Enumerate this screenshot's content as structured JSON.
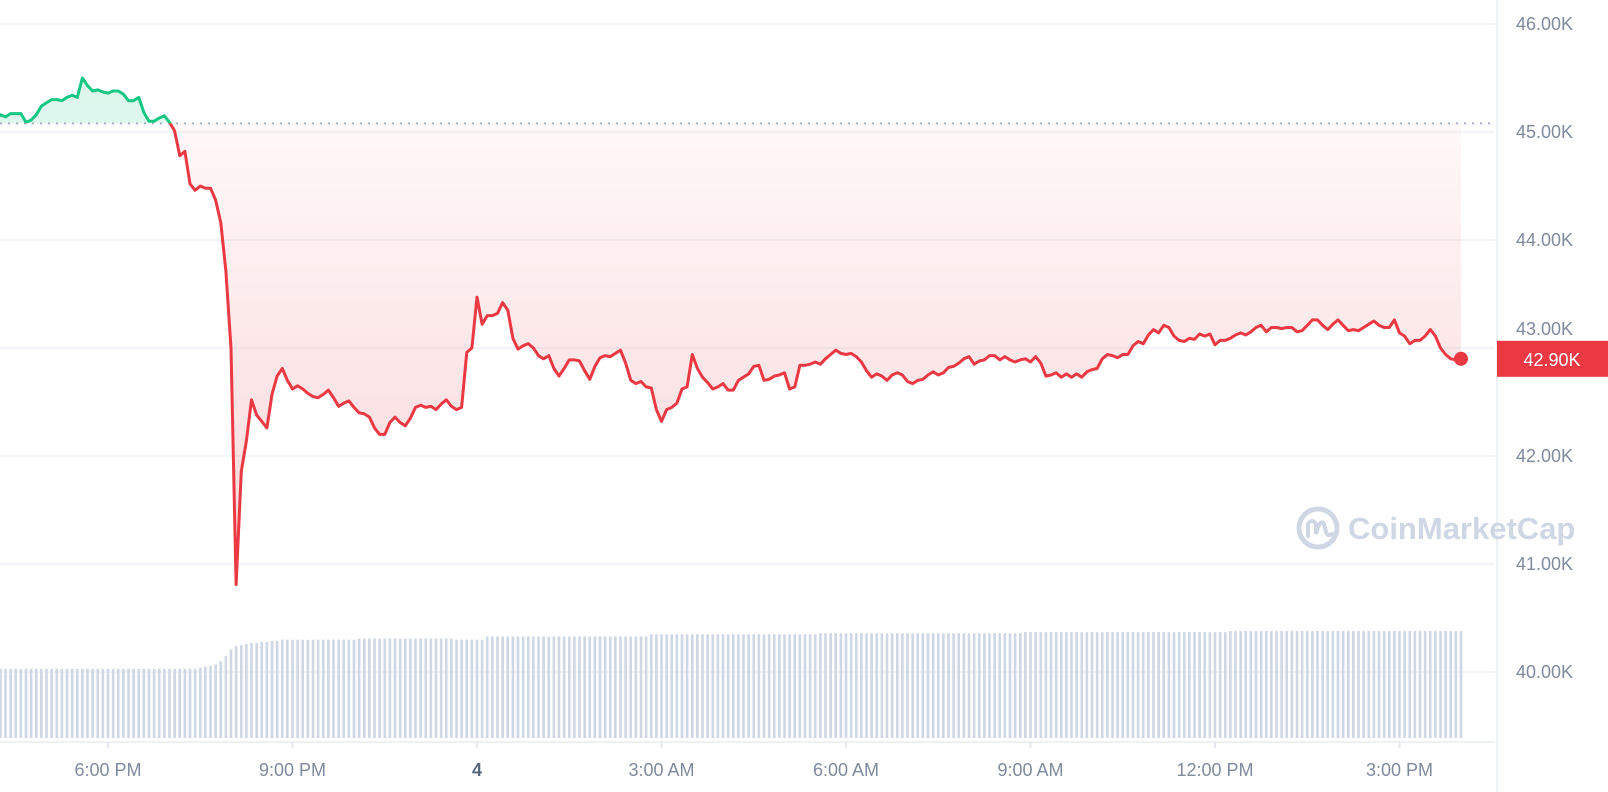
{
  "chart_data": {
    "type": "area",
    "title": "",
    "xlabel": "",
    "ylabel": "",
    "start_time": "4:10 PM",
    "interval_minutes": 5,
    "y_unit": "K",
    "ylim": [
      39.5,
      46.2
    ],
    "grid": true,
    "reference_price": 45.08,
    "current_price_label": "42.90K",
    "colors": {
      "up": "#16c784",
      "down": "#ea3943",
      "volume": "#cfd6e4",
      "grid": "#eff2f5",
      "text": "#808a9d"
    },
    "y_ticks": [
      {
        "value": 46,
        "label": "46.00K"
      },
      {
        "value": 45,
        "label": "45.00K"
      },
      {
        "value": 44,
        "label": "44.00K"
      },
      {
        "value": 43,
        "label": "43.00K"
      },
      {
        "value": 42,
        "label": "42.00K"
      },
      {
        "value": 41,
        "label": "41.00K"
      },
      {
        "value": 40,
        "label": "40.00K"
      }
    ],
    "x_ticks": [
      {
        "hour": -6,
        "label": "6:00 PM",
        "bold": false
      },
      {
        "hour": -3,
        "label": "9:00 PM",
        "bold": false
      },
      {
        "hour": 0,
        "label": "4",
        "bold": true
      },
      {
        "hour": 3,
        "label": "3:00 AM",
        "bold": false
      },
      {
        "hour": 6,
        "label": "6:00 AM",
        "bold": false
      },
      {
        "hour": 9,
        "label": "9:00 AM",
        "bold": false
      },
      {
        "hour": 12,
        "label": "12:00 PM",
        "bold": false
      },
      {
        "hour": 15,
        "label": "3:00 PM",
        "bold": false
      }
    ],
    "price": [
      45.11,
      45.16,
      45.14,
      45.17,
      45.17,
      45.17,
      45.09,
      45.11,
      45.16,
      45.24,
      45.27,
      45.3,
      45.3,
      45.29,
      45.32,
      45.34,
      45.32,
      45.5,
      45.43,
      45.38,
      45.39,
      45.37,
      45.36,
      45.38,
      45.38,
      45.35,
      45.29,
      45.29,
      45.32,
      45.18,
      45.1,
      45.1,
      45.13,
      45.15,
      45.09,
      45.01,
      44.78,
      44.82,
      44.52,
      44.46,
      44.5,
      44.48,
      44.48,
      44.37,
      44.16,
      43.71,
      43.0,
      40.81,
      41.86,
      42.14,
      42.52,
      42.38,
      42.32,
      42.26,
      42.57,
      42.74,
      42.81,
      42.7,
      42.62,
      42.65,
      42.62,
      42.58,
      42.55,
      42.54,
      42.57,
      42.61,
      42.54,
      42.46,
      42.49,
      42.51,
      42.45,
      42.4,
      42.39,
      42.36,
      42.26,
      42.2,
      42.2,
      42.31,
      42.36,
      42.31,
      42.28,
      42.35,
      42.45,
      42.47,
      42.45,
      42.46,
      42.43,
      42.48,
      42.52,
      42.46,
      42.43,
      42.45,
      42.96,
      43.0,
      43.47,
      43.22,
      43.3,
      43.3,
      43.32,
      43.42,
      43.35,
      43.09,
      42.99,
      43.02,
      43.04,
      43.0,
      42.93,
      42.9,
      42.93,
      42.81,
      42.74,
      42.81,
      42.89,
      42.89,
      42.88,
      42.79,
      42.71,
      42.83,
      42.91,
      42.93,
      42.92,
      42.95,
      42.98,
      42.86,
      42.7,
      42.67,
      42.69,
      42.64,
      42.63,
      42.43,
      42.32,
      42.43,
      42.45,
      42.49,
      42.62,
      42.64,
      42.94,
      42.81,
      42.73,
      42.68,
      42.62,
      42.64,
      42.67,
      42.61,
      42.61,
      42.7,
      42.73,
      42.76,
      42.83,
      42.84,
      42.7,
      42.71,
      42.74,
      42.75,
      42.77,
      42.62,
      42.64,
      42.84,
      42.84,
      42.85,
      42.87,
      42.85,
      42.9,
      42.94,
      42.98,
      42.95,
      42.94,
      42.95,
      42.92,
      42.87,
      42.79,
      42.73,
      42.76,
      42.74,
      42.7,
      42.75,
      42.77,
      42.75,
      42.69,
      42.67,
      42.7,
      42.71,
      42.75,
      42.78,
      42.75,
      42.77,
      42.82,
      42.83,
      42.86,
      42.9,
      42.92,
      42.85,
      42.88,
      42.89,
      42.93,
      42.93,
      42.89,
      42.92,
      42.89,
      42.87,
      42.89,
      42.9,
      42.87,
      42.92,
      42.86,
      42.74,
      42.75,
      42.77,
      42.73,
      42.76,
      42.73,
      42.76,
      42.73,
      42.78,
      42.8,
      42.81,
      42.9,
      42.94,
      42.93,
      42.91,
      42.94,
      42.94,
      43.02,
      43.06,
      43.04,
      43.12,
      43.17,
      43.14,
      43.21,
      43.19,
      43.11,
      43.07,
      43.06,
      43.09,
      43.08,
      43.13,
      43.11,
      43.13,
      43.03,
      43.07,
      43.07,
      43.09,
      43.12,
      43.14,
      43.12,
      43.15,
      43.19,
      43.21,
      43.15,
      43.19,
      43.19,
      43.18,
      43.19,
      43.19,
      43.15,
      43.16,
      43.21,
      43.26,
      43.26,
      43.21,
      43.17,
      43.22,
      43.26,
      43.21,
      43.16,
      43.17,
      43.16,
      43.19,
      43.22,
      43.25,
      43.21,
      43.19,
      43.19,
      43.26,
      43.14,
      43.11,
      43.04,
      43.07,
      43.07,
      43.11,
      43.17,
      43.11,
      43.0,
      42.94,
      42.9,
      42.89,
      42.9
    ],
    "volume_percent_of_max": [
      64,
      64,
      64,
      64,
      64,
      64,
      64,
      64,
      64,
      64,
      64,
      64,
      64,
      64,
      64,
      64,
      64,
      64,
      64,
      64,
      64,
      64,
      64,
      64,
      64,
      64,
      64,
      64,
      64,
      64,
      64,
      64,
      64,
      64,
      64,
      64,
      64,
      64,
      64,
      64,
      65,
      66,
      67,
      68,
      71,
      76,
      82,
      85,
      86,
      87,
      88,
      88,
      89,
      89,
      90,
      90,
      91,
      91,
      91,
      91,
      91,
      91,
      91,
      91,
      91,
      91,
      91,
      91,
      91,
      91,
      91,
      92,
      92,
      92,
      92,
      92,
      92,
      92,
      92,
      92,
      92,
      92,
      92,
      92,
      92,
      92,
      92,
      92,
      92,
      92,
      91,
      91,
      91,
      91,
      91,
      91,
      94,
      94,
      94,
      94,
      94,
      94,
      94,
      94,
      94,
      94,
      94,
      94,
      94,
      94,
      94,
      94,
      94,
      94,
      94,
      94,
      94,
      94,
      94,
      94,
      94,
      94,
      94,
      94,
      94,
      94,
      94,
      94,
      96,
      96,
      96,
      96,
      96,
      96,
      96,
      96,
      96,
      96,
      96,
      96,
      96,
      96,
      96,
      96,
      96,
      96,
      96,
      96,
      96,
      96,
      96,
      96,
      96,
      96,
      96,
      96,
      96,
      96,
      96,
      96,
      96,
      97,
      97,
      97,
      97,
      97,
      97,
      97,
      97,
      97,
      97,
      97,
      97,
      97,
      97,
      97,
      97,
      97,
      97,
      97,
      97,
      97,
      97,
      97,
      97,
      97,
      97,
      97,
      97,
      97,
      97,
      97,
      97,
      97,
      97,
      97,
      97,
      97,
      97,
      97,
      97,
      98,
      98,
      98,
      98,
      98,
      98,
      98,
      98,
      98,
      98,
      98,
      98,
      98,
      98,
      98,
      98,
      98,
      98,
      98,
      98,
      98,
      98,
      98,
      98,
      98,
      98,
      98,
      98,
      98,
      98,
      98,
      98,
      98,
      98,
      98,
      98,
      98,
      98,
      98,
      98,
      99,
      99,
      99,
      99,
      99,
      99,
      99,
      99,
      99,
      99,
      99,
      99,
      99,
      99,
      99,
      99,
      99,
      99,
      99,
      99,
      99,
      99,
      99,
      99,
      99,
      99,
      99,
      99,
      99,
      99,
      99,
      99,
      99,
      99,
      99,
      99,
      99,
      99,
      99,
      99,
      99,
      99,
      99,
      99,
      99,
      99
    ]
  },
  "watermark": {
    "text": "CoinMarketCap",
    "icon": "coinmarketcap-logo-icon"
  }
}
